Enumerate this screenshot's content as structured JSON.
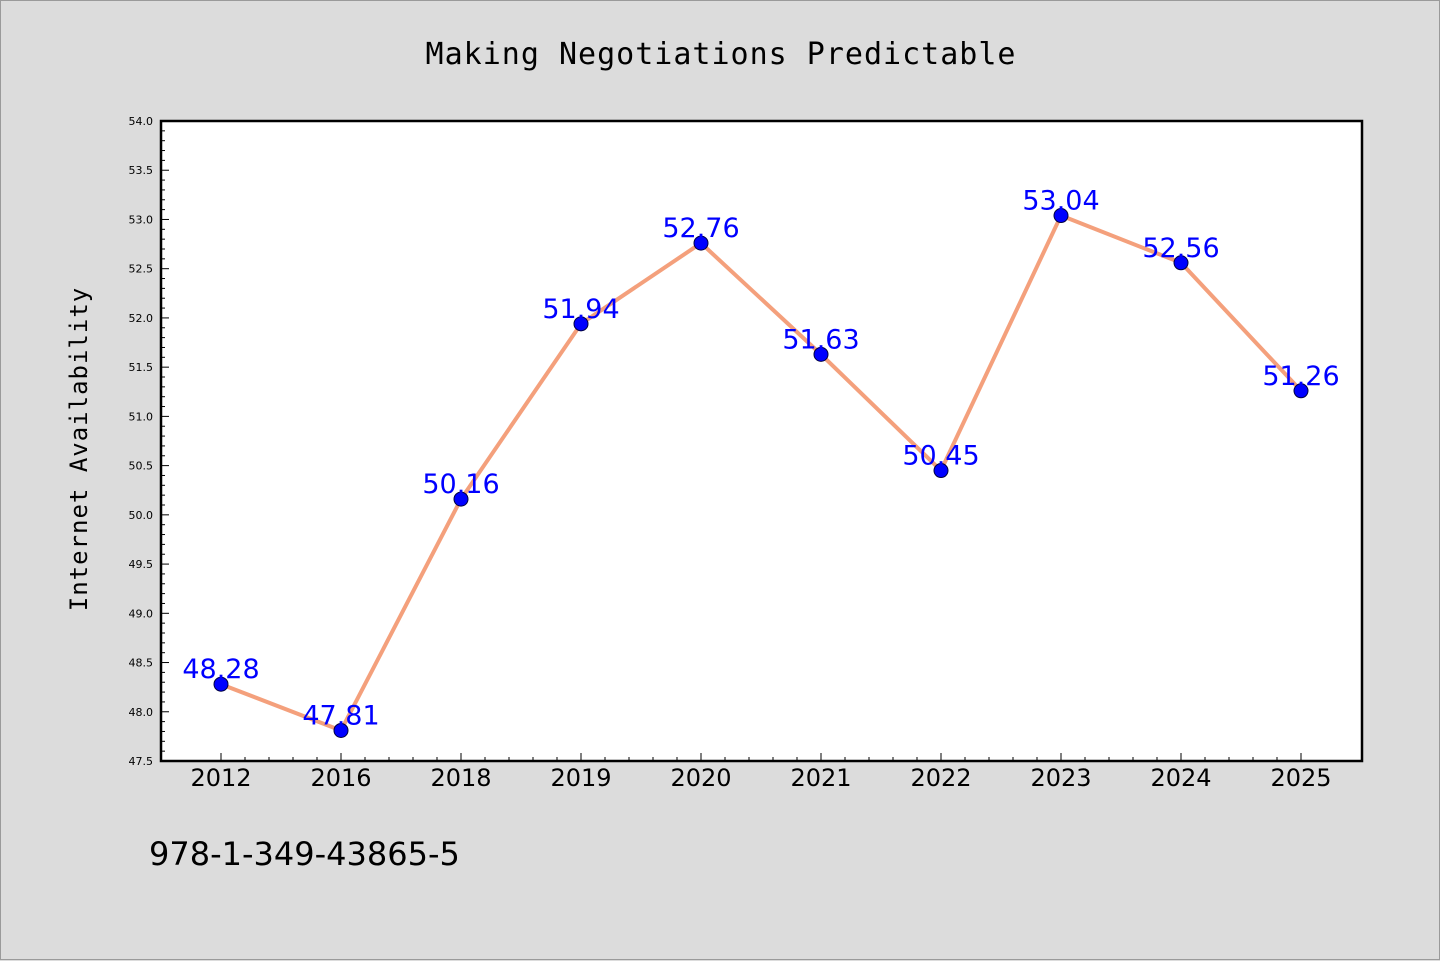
{
  "chart_data": {
    "type": "line",
    "title": "Making Negotiations Predictable",
    "xlabel": "",
    "ylabel": "Internet Availability",
    "categories": [
      "2012",
      "2016",
      "2018",
      "2019",
      "2020",
      "2021",
      "2022",
      "2023",
      "2024",
      "2025"
    ],
    "series": [
      {
        "values": [
          48.28,
          47.81,
          50.16,
          51.94,
          52.76,
          51.63,
          50.45,
          53.04,
          52.56,
          51.26
        ],
        "data_labels": [
          "48.28",
          "47.81",
          "50.16",
          "51.94",
          "52.76",
          "51.63",
          "50.45",
          "53.04",
          "52.56",
          "51.26"
        ],
        "line_color": "#f4a07c",
        "marker_color": "#0000ff",
        "label_color": "#0000ff"
      }
    ],
    "ylim": [
      47.5,
      54.0
    ],
    "yticks": [
      "47.5",
      "48.0",
      "48.5",
      "49.0",
      "49.5",
      "50.0",
      "50.5",
      "51.0",
      "51.5",
      "52.0",
      "52.5",
      "53.0",
      "53.5",
      "54.0"
    ],
    "grid": false,
    "legend": "none",
    "footer": "978-1-349-43865-5"
  },
  "colors": {
    "background": "#dcdcdc",
    "plot_background": "#ffffff",
    "axis": "#000000"
  }
}
